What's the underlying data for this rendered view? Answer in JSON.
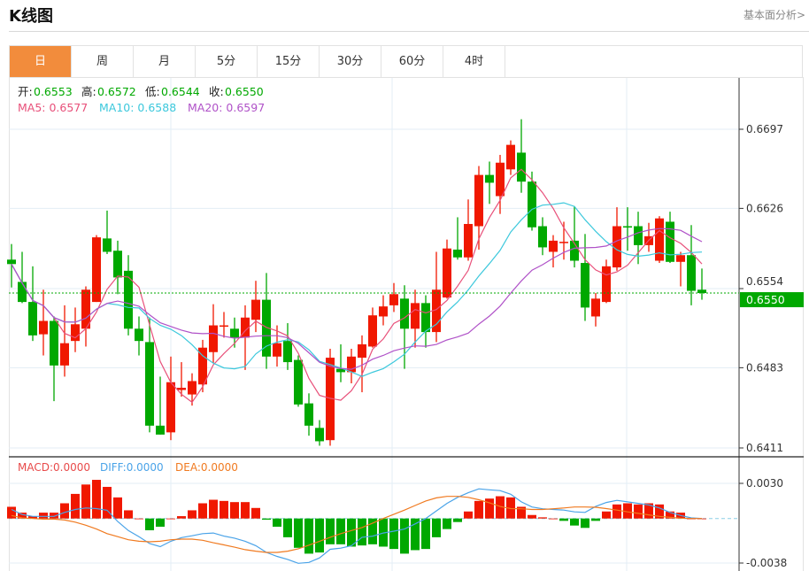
{
  "header": {
    "title": "K线图",
    "link": "基本面分析>"
  },
  "tabs": [
    {
      "label": "日",
      "active": true
    },
    {
      "label": "周"
    },
    {
      "label": "月"
    },
    {
      "label": "5分"
    },
    {
      "label": "15分"
    },
    {
      "label": "30分"
    },
    {
      "label": "60分"
    },
    {
      "label": "4时"
    }
  ],
  "legend": {
    "open_label": "开:",
    "open": "0.6553",
    "high_label": "高:",
    "high": "0.6572",
    "low_label": "低:",
    "low": "0.6544",
    "close_label": "收:",
    "close": "0.6550",
    "ma5": "MA5: 0.6577",
    "ma10": "MA10: 0.6588",
    "ma20": "MA20: 0.6597"
  },
  "macd_legend": {
    "macd": "MACD:0.0000",
    "diff": "DIFF:0.0000",
    "dea": "DEA:0.0000"
  },
  "colors": {
    "up": "#f01800",
    "down": "#00a800",
    "ma5": "#e8507a",
    "ma10": "#3cc8dc",
    "ma20": "#b052c8",
    "diff": "#4aa3e8",
    "dea": "#f07a20",
    "accent": "#f28c3c"
  },
  "chart_data": {
    "type": "candlestick",
    "price_ticks": [
      "0.6697",
      "0.6626",
      "0.6554",
      "0.6483",
      "0.6411"
    ],
    "price_range": [
      0.6411,
      0.6697
    ],
    "current_price": "0.6550",
    "macd_ticks": [
      "0.0030",
      "-0.0038"
    ],
    "macd_range": [
      -0.0038,
      0.003
    ],
    "ohlc": [
      [
        0.658,
        0.6594,
        0.6555,
        0.6576
      ],
      [
        0.656,
        0.6587,
        0.6541,
        0.6542
      ],
      [
        0.6542,
        0.6574,
        0.6507,
        0.6512
      ],
      [
        0.6513,
        0.6553,
        0.6494,
        0.6525
      ],
      [
        0.6525,
        0.6529,
        0.6453,
        0.6485
      ],
      [
        0.6485,
        0.6539,
        0.6475,
        0.6505
      ],
      [
        0.6507,
        0.6537,
        0.6497,
        0.6522
      ],
      [
        0.6518,
        0.6556,
        0.6502,
        0.6553
      ],
      [
        0.6542,
        0.6602,
        0.6542,
        0.66
      ],
      [
        0.6599,
        0.6624,
        0.6585,
        0.6587
      ],
      [
        0.6588,
        0.6597,
        0.6549,
        0.6564
      ],
      [
        0.657,
        0.6584,
        0.6512,
        0.6518
      ],
      [
        0.6518,
        0.6529,
        0.6494,
        0.6507
      ],
      [
        0.6506,
        0.6528,
        0.6425,
        0.6431
      ],
      [
        0.6431,
        0.6475,
        0.6423,
        0.6423
      ],
      [
        0.6425,
        0.6493,
        0.6418,
        0.647
      ],
      [
        0.6463,
        0.6488,
        0.6457,
        0.6465
      ],
      [
        0.6459,
        0.6478,
        0.6449,
        0.6471
      ],
      [
        0.6468,
        0.6508,
        0.6461,
        0.6501
      ],
      [
        0.6497,
        0.654,
        0.6487,
        0.6521
      ],
      [
        0.652,
        0.6533,
        0.651,
        0.6521
      ],
      [
        0.6518,
        0.6528,
        0.6501,
        0.651
      ],
      [
        0.651,
        0.6539,
        0.6481,
        0.6528
      ],
      [
        0.6526,
        0.6561,
        0.6515,
        0.6544
      ],
      [
        0.6544,
        0.6568,
        0.6482,
        0.6493
      ],
      [
        0.6493,
        0.6521,
        0.6484,
        0.6505
      ],
      [
        0.6507,
        0.6523,
        0.6481,
        0.6488
      ],
      [
        0.649,
        0.6494,
        0.6448,
        0.645
      ],
      [
        0.6451,
        0.646,
        0.6422,
        0.6431
      ],
      [
        0.6429,
        0.6436,
        0.6413,
        0.6417
      ],
      [
        0.6418,
        0.65,
        0.6413,
        0.6492
      ],
      [
        0.6482,
        0.6504,
        0.647,
        0.6479
      ],
      [
        0.6479,
        0.65,
        0.6469,
        0.6493
      ],
      [
        0.6492,
        0.6512,
        0.6461,
        0.6504
      ],
      [
        0.6502,
        0.6537,
        0.6501,
        0.653
      ],
      [
        0.6529,
        0.6548,
        0.6521,
        0.6538
      ],
      [
        0.6539,
        0.6559,
        0.6533,
        0.6549
      ],
      [
        0.6545,
        0.6557,
        0.6482,
        0.6518
      ],
      [
        0.6518,
        0.6553,
        0.6501,
        0.6541
      ],
      [
        0.6541,
        0.6548,
        0.6501,
        0.6515
      ],
      [
        0.6515,
        0.6587,
        0.6506,
        0.6553
      ],
      [
        0.6546,
        0.6598,
        0.6545,
        0.659
      ],
      [
        0.6589,
        0.6618,
        0.658,
        0.6582
      ],
      [
        0.6582,
        0.6634,
        0.6579,
        0.6612
      ],
      [
        0.661,
        0.6664,
        0.6589,
        0.6656
      ],
      [
        0.6656,
        0.6668,
        0.663,
        0.6649
      ],
      [
        0.6637,
        0.6674,
        0.6621,
        0.6667
      ],
      [
        0.6661,
        0.6687,
        0.6656,
        0.6683
      ],
      [
        0.6676,
        0.6706,
        0.664,
        0.665
      ],
      [
        0.665,
        0.6659,
        0.6606,
        0.6609
      ],
      [
        0.661,
        0.6618,
        0.6584,
        0.6591
      ],
      [
        0.6587,
        0.6602,
        0.6573,
        0.6597
      ],
      [
        0.6595,
        0.6614,
        0.658,
        0.6596
      ],
      [
        0.6597,
        0.6628,
        0.6573,
        0.6579
      ],
      [
        0.6577,
        0.6603,
        0.6525,
        0.6537
      ],
      [
        0.6529,
        0.655,
        0.652,
        0.6545
      ],
      [
        0.6542,
        0.658,
        0.6541,
        0.6574
      ],
      [
        0.6573,
        0.6627,
        0.657,
        0.661
      ],
      [
        0.661,
        0.6627,
        0.6588,
        0.6609
      ],
      [
        0.661,
        0.6623,
        0.6576,
        0.6593
      ],
      [
        0.6593,
        0.6613,
        0.6587,
        0.6601
      ],
      [
        0.6579,
        0.6619,
        0.6577,
        0.6617
      ],
      [
        0.6614,
        0.6623,
        0.6577,
        0.6578
      ],
      [
        0.6578,
        0.6587,
        0.6556,
        0.6584
      ],
      [
        0.6584,
        0.6611,
        0.6539,
        0.6552
      ],
      [
        0.6553,
        0.6572,
        0.6544,
        0.655
      ]
    ],
    "macd_hist": [
      0.001,
      0.0005,
      0.0002,
      0.0005,
      0.0005,
      0.0013,
      0.0021,
      0.0029,
      0.0033,
      0.0027,
      0.0018,
      0.0007,
      0,
      -0.001,
      -0.0007,
      0,
      0.0002,
      0.0007,
      0.0013,
      0.0016,
      0.0015,
      0.0014,
      0.0014,
      0.0009,
      -0.0001,
      -0.0007,
      -0.0016,
      -0.0025,
      -0.003,
      -0.0029,
      -0.0022,
      -0.0022,
      -0.0024,
      -0.0023,
      -0.0022,
      -0.0024,
      -0.0026,
      -0.003,
      -0.0027,
      -0.0026,
      -0.0016,
      -0.0009,
      -0.0003,
      0.0006,
      0.0015,
      0.0017,
      0.0019,
      0.0018,
      0.001,
      0.0003,
      0.0001,
      0,
      -0.0002,
      -0.0006,
      -0.0008,
      -0.0002,
      0.0006,
      0.0012,
      0.0013,
      0.0012,
      0.0013,
      0.0012,
      0.0006,
      0.0005,
      0,
      0
    ],
    "diff": [
      0.00077,
      0.00034,
      0.00018,
      0.00018,
      0.00018,
      0.00052,
      0.00077,
      0.0009,
      0.00085,
      0.0007,
      -0.00026,
      -0.00103,
      -0.00155,
      -0.00214,
      -0.0024,
      -0.00194,
      -0.00163,
      -0.00147,
      -0.00129,
      -0.00124,
      -0.0015,
      -0.00168,
      -0.00194,
      -0.00232,
      -0.00289,
      -0.00323,
      -0.00349,
      -0.00382,
      -0.00375,
      -0.00336,
      -0.00263,
      -0.00253,
      -0.00233,
      -0.0016,
      -0.0015,
      -0.00124,
      -0.00108,
      -0.0009,
      -0.00046,
      0,
      0.00065,
      0.00129,
      0.00181,
      0.0022,
      0.00253,
      0.00245,
      0.00238,
      0.00207,
      0.00142,
      0.00098,
      0.00083,
      0.00077,
      0.00072,
      0.00057,
      0.00052,
      0.00103,
      0.00137,
      0.00155,
      0.00142,
      0.00129,
      0.00116,
      0.0009,
      0.00052,
      0.00026,
      5e-05,
      0
    ],
    "dea": [
      0.00026,
      5e-05,
      0,
      -5e-05,
      -5e-05,
      -0.00013,
      -0.00031,
      -0.00057,
      -0.0009,
      -0.00129,
      -0.00155,
      -0.00181,
      -0.00194,
      -0.00199,
      -0.00194,
      -0.00181,
      -0.00176,
      -0.00176,
      -0.00186,
      -0.00207,
      -0.00225,
      -0.00245,
      -0.00266,
      -0.00279,
      -0.00289,
      -0.00289,
      -0.00279,
      -0.00258,
      -0.00227,
      -0.00194,
      -0.0016,
      -0.00129,
      -0.00103,
      -0.00077,
      -0.00039,
      0,
      0.00036,
      0.00072,
      0.00111,
      0.0015,
      0.00176,
      0.00189,
      0.00189,
      0.00181,
      0.0016,
      0.00134,
      0.00103,
      0.00085,
      0.00083,
      0.00077,
      0.00077,
      0.00083,
      0.0009,
      0.00098,
      0.00098,
      0.00096,
      0.00085,
      0.00072,
      0.00057,
      0.00044,
      0.00031,
      0.00018,
      0.0001,
      3e-05,
      0,
      0
    ]
  }
}
